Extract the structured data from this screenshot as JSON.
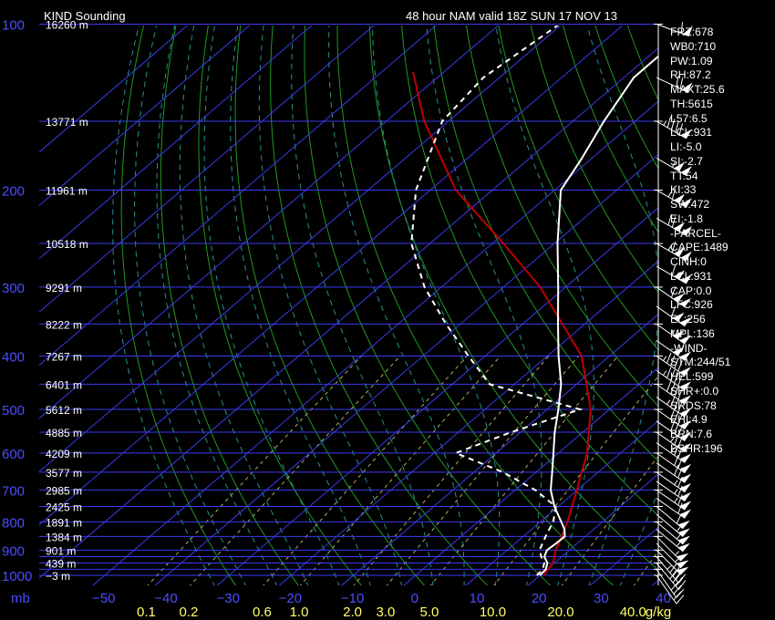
{
  "header": {
    "station": "KIND Sounding",
    "model": "48 hour NAM valid 18Z SUN 17 NOV 13"
  },
  "indices": [
    "FRZ:678",
    "WB0:710",
    "PW:1.09",
    "RH:87.2",
    "MAXT:25.6",
    "TH:5615",
    "L57:6.5",
    "LCL:931",
    "LI:-5.0",
    "SI:-2.7",
    "TT:54",
    "KI:33",
    "SW:472",
    "EI:-1.8",
    "-PARCEL-",
    "CAPE:1489",
    "CINH:0",
    "LCL:931",
    "CAP:0.0",
    "LFC:926",
    "EL:256",
    "MPL:136",
    "-WIND-",
    "STM:244/51",
    "HEL:599",
    "SHR+:0.0",
    "SRDS:78",
    "EHI:4.9",
    "BRN:7.6",
    "BSHR:196"
  ],
  "chart_data": {
    "type": "skew-t log-p sounding",
    "title": "KIND Sounding",
    "subtitle": "48 hour NAM valid 18Z SUN 17 NOV 13",
    "pressure_axis_unit": "mb",
    "pressure_ticks": [
      "100",
      "200",
      "300",
      "400",
      "500",
      "600",
      "700",
      "800",
      "900",
      "1000"
    ],
    "height_labels": [
      "16260 m",
      "13771 m",
      "11961 m",
      "10518 m",
      "9291 m",
      "8222 m",
      "7267 m",
      "6401 m",
      "5612 m",
      "4885 m",
      "4209 m",
      "3577 m",
      "2985 m",
      "2425 m",
      "1891 m",
      "1384 m",
      "901 m",
      "439 m",
      "−3 m"
    ],
    "temperature_ticks": [
      "−50",
      "−40",
      "−30",
      "−20",
      "−10",
      "0",
      "10",
      "20",
      "30",
      "40"
    ],
    "mixing_ratio_labels": [
      "0.1",
      "0.2",
      "0.6",
      "1.0",
      "2.0",
      "3.0",
      "5.0",
      "10.0",
      "20.0",
      "40.0"
    ],
    "mixing_ratio_unit": "g/kg",
    "temperature_profile": [
      {
        "p": 1000,
        "t": 20.0
      },
      {
        "p": 975,
        "t": 19.8
      },
      {
        "p": 950,
        "t": 18.9
      },
      {
        "p": 925,
        "t": 17.2
      },
      {
        "p": 900,
        "t": 16.4
      },
      {
        "p": 875,
        "t": 16.6
      },
      {
        "p": 850,
        "t": 16.7
      },
      {
        "p": 825,
        "t": 15.3
      },
      {
        "p": 800,
        "t": 13.4
      },
      {
        "p": 750,
        "t": 9.4
      },
      {
        "p": 700,
        "t": 5.7
      },
      {
        "p": 650,
        "t": 2.6
      },
      {
        "p": 600,
        "t": -0.8
      },
      {
        "p": 550,
        "t": -4.5
      },
      {
        "p": 500,
        "t": -8.2
      },
      {
        "p": 450,
        "t": -12.5
      },
      {
        "p": 400,
        "t": -18.2
      },
      {
        "p": 350,
        "t": -24.3
      },
      {
        "p": 300,
        "t": -31.2
      },
      {
        "p": 250,
        "t": -39.5
      },
      {
        "p": 200,
        "t": -49.0
      },
      {
        "p": 175,
        "t": -51.6
      },
      {
        "p": 150,
        "t": -55.0
      },
      {
        "p": 125,
        "t": -58.4
      },
      {
        "p": 100,
        "t": -58.5
      }
    ],
    "dewpoint_profile": [
      {
        "p": 1000,
        "t": 19.5
      },
      {
        "p": 975,
        "t": 19.3
      },
      {
        "p": 950,
        "t": 18.4
      },
      {
        "p": 925,
        "t": 16.7
      },
      {
        "p": 900,
        "t": 15.2
      },
      {
        "p": 850,
        "t": 13.6
      },
      {
        "p": 800,
        "t": 12.1
      },
      {
        "p": 775,
        "t": 10.9
      },
      {
        "p": 750,
        "t": 9.6
      },
      {
        "p": 700,
        "t": 3.2
      },
      {
        "p": 675,
        "t": -1.0
      },
      {
        "p": 650,
        "t": -5.3
      },
      {
        "p": 600,
        "t": -16.5
      },
      {
        "p": 550,
        "t": -11.5
      },
      {
        "p": 500,
        "t": -4.7
      },
      {
        "p": 450,
        "t": -24.0
      },
      {
        "p": 400,
        "t": -32.7
      },
      {
        "p": 350,
        "t": -42.3
      },
      {
        "p": 300,
        "t": -52.7
      },
      {
        "p": 250,
        "t": -63.0
      },
      {
        "p": 200,
        "t": -72.3
      },
      {
        "p": 150,
        "t": -81.0
      },
      {
        "p": 125,
        "t": -82.6
      },
      {
        "p": 100,
        "t": -80.4
      }
    ],
    "parcel_profile": [
      {
        "p": 1000,
        "t": 20.6
      },
      {
        "p": 950,
        "t": 19.8
      },
      {
        "p": 900,
        "t": 17.8
      },
      {
        "p": 850,
        "t": 16.2
      },
      {
        "p": 800,
        "t": 14.4
      },
      {
        "p": 700,
        "t": 9.9
      },
      {
        "p": 600,
        "t": 4.6
      },
      {
        "p": 500,
        "t": -3.0
      },
      {
        "p": 400,
        "t": -14.5
      },
      {
        "p": 300,
        "t": -34.1
      },
      {
        "p": 250,
        "t": -48.2
      },
      {
        "p": 200,
        "t": -65.9
      },
      {
        "p": 150,
        "t": -83.9
      },
      {
        "p": 122,
        "t": -95.0
      }
    ],
    "wind_barbs": [
      {
        "p": 1000,
        "dir": 215,
        "spd": 20
      },
      {
        "p": 975,
        "dir": 215,
        "spd": 30
      },
      {
        "p": 950,
        "dir": 220,
        "spd": 40
      },
      {
        "p": 925,
        "dir": 220,
        "spd": 45
      },
      {
        "p": 900,
        "dir": 225,
        "spd": 50
      },
      {
        "p": 875,
        "dir": 225,
        "spd": 55
      },
      {
        "p": 850,
        "dir": 225,
        "spd": 55
      },
      {
        "p": 825,
        "dir": 230,
        "spd": 55
      },
      {
        "p": 800,
        "dir": 230,
        "spd": 55
      },
      {
        "p": 775,
        "dir": 230,
        "spd": 55
      },
      {
        "p": 750,
        "dir": 230,
        "spd": 60
      },
      {
        "p": 725,
        "dir": 235,
        "spd": 60
      },
      {
        "p": 700,
        "dir": 235,
        "spd": 65
      },
      {
        "p": 675,
        "dir": 235,
        "spd": 65
      },
      {
        "p": 650,
        "dir": 235,
        "spd": 65
      },
      {
        "p": 625,
        "dir": 235,
        "spd": 70
      },
      {
        "p": 600,
        "dir": 235,
        "spd": 70
      },
      {
        "p": 575,
        "dir": 235,
        "spd": 75
      },
      {
        "p": 550,
        "dir": 235,
        "spd": 75
      },
      {
        "p": 525,
        "dir": 235,
        "spd": 80
      },
      {
        "p": 500,
        "dir": 235,
        "spd": 80
      },
      {
        "p": 475,
        "dir": 235,
        "spd": 85
      },
      {
        "p": 450,
        "dir": 235,
        "spd": 90
      },
      {
        "p": 425,
        "dir": 235,
        "spd": 95
      },
      {
        "p": 400,
        "dir": 235,
        "spd": 95
      },
      {
        "p": 375,
        "dir": 235,
        "spd": 100
      },
      {
        "p": 350,
        "dir": 235,
        "spd": 105
      },
      {
        "p": 325,
        "dir": 235,
        "spd": 110
      },
      {
        "p": 300,
        "dir": 235,
        "spd": 110
      },
      {
        "p": 275,
        "dir": 240,
        "spd": 110
      },
      {
        "p": 250,
        "dir": 240,
        "spd": 115
      },
      {
        "p": 225,
        "dir": 240,
        "spd": 120
      },
      {
        "p": 200,
        "dir": 240,
        "spd": 115
      },
      {
        "p": 175,
        "dir": 240,
        "spd": 105
      },
      {
        "p": 150,
        "dir": 240,
        "spd": 95
      },
      {
        "p": 125,
        "dir": 245,
        "spd": 70
      },
      {
        "p": 100,
        "dir": 250,
        "spd": 60
      }
    ]
  }
}
